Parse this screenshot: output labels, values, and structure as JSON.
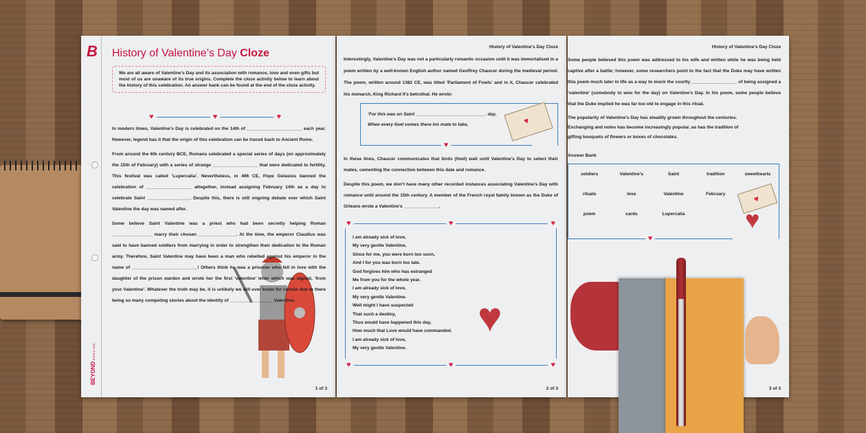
{
  "brand": {
    "logo_letter": "B",
    "name": "BEYOND",
    "sub": "ENGLISH"
  },
  "worksheet_title": {
    "main": "History of Valentine’s Day",
    "bold": "Cloze"
  },
  "running_header": "History of Valentine’s Day Cloze",
  "colors": {
    "accent": "#c8123f",
    "border_blue": "#3a7fb8",
    "wood": "#8a6a4e"
  },
  "page1": {
    "intro": "We are all aware of Valentine’s Day and its association with romance, love and even gifts but most of us are unaware of its true origins. Complete the cloze activity below to learn about the history of this celebration. An answer bank can be found at the end of the cloze activity.",
    "paragraphs": [
      "In modern times, Valentine’s Day is celebrated on the 14th of ______________________ each year. However, legend has it that the origin of this celebration can be traced back to Ancient Rome.",
      "From around the 6th century BCE, Romans celebrated a special series of days (on approximately the 15th of February) with a series of strange __________________ that were dedicated to fertility. This festival was called ‘Lupercalia’. Nevertheless, in 496 CE, Pope Gelasius banned the celebration of __________________ altogether, instead assigning February 14th as a day to celebrate Saint _________________. Despite this, there is still ongoing debate over which Saint Valentine the day was named after.",
      "Some believe Saint Valentine was a priest who had been secretly helping Roman ________________ marry their chosen _______________. At the time, the emperor Claudius was said to have banned soldiers from marrying in order to strengthen their dedication to the Roman army. Therefore, Saint Valentine may have been a man who rebelled against his emperor in the name of __________________________! Others think he was a prisoner who fell in love with the daughter of the prison warden and wrote her the first ‘valentine’ letter which was signed, ‘from your Valentine’. Whatever the truth may be, it is unlikely we will ever know for certain due to there being so many competing stories about the identity of _________________ Valentine."
    ],
    "page_number": "1 of 3"
  },
  "page2": {
    "paragraphs": [
      "Interestingly, Valentine’s Day was not a particularly romantic occasion until it was immortalised in a poem written by a well-known English author named Geoffrey Chaucer during the medieval period. The poem, written around 1382 CE, was titled ‘Parliament of Fowls’ and in it, Chaucer celebrated his monarch, King Richard II’s betrothal. He wrote:"
    ],
    "quote": [
      "‘For this was on Saint ____________________________ day,",
      "When every fowl comes there his mate to take,"
    ],
    "paragraphs_after": [
      "In these lines, Chaucer communicates that birds (fowl) wait until Valentine’s Day to select their mates, cementing the connection between this date and romance.",
      "Despite this poem, we don’t have many other recorded instances associating Valentine’s Day with romance until around the 15th century. A member of the French royal family known as the Duke of Orleans wrote a Valentine’s ______________."
    ],
    "poem": [
      "I am already sick of love,",
      "My very gentle Valentine,",
      "Since for me, you were born too soon,",
      "And I for you was born too late.",
      "God forgives him who has estranged",
      "Me from you for the whole year.",
      "I am already sick of love,",
      "My very gentle Valentine.",
      "Well might I have suspected",
      "That such a destiny,",
      "Thus would have happened this day,",
      "How much that Love would have commanded.",
      "I am already sick of love,",
      "My very gentle Valentine."
    ],
    "page_number": "2 of 3"
  },
  "page3": {
    "paragraphs": [
      "Some people believed this poem was addressed to his wife and written while he was being held captive after a battle; however, some researchers point to the fact that the Duke may have written this poem much later in life as a way to mock the courtly __________________ of being assigned a ‘valentine’ (somebody to woo for the day) on Valentine’s Day. In his poem, some people believe that the Duke implied he was far too old to engage in this ritual.",
      "The popularity of Valentine’s Day has steadily grown throughout the centuries. Exchanging and notes has become increasingly popular, as has the tradition of gifting bouquets of flowers or boxes of chocolates."
    ],
    "answer_bank_title": "Answer Bank",
    "answer_bank": [
      "soldiers",
      "Valentine’s",
      "Saint",
      "tradition",
      "sweethearts",
      "rituals",
      "love",
      "Valentine",
      "February",
      "",
      "poem",
      "cards",
      "Lupercalia",
      "",
      ""
    ],
    "page_number": "3 of 3"
  }
}
